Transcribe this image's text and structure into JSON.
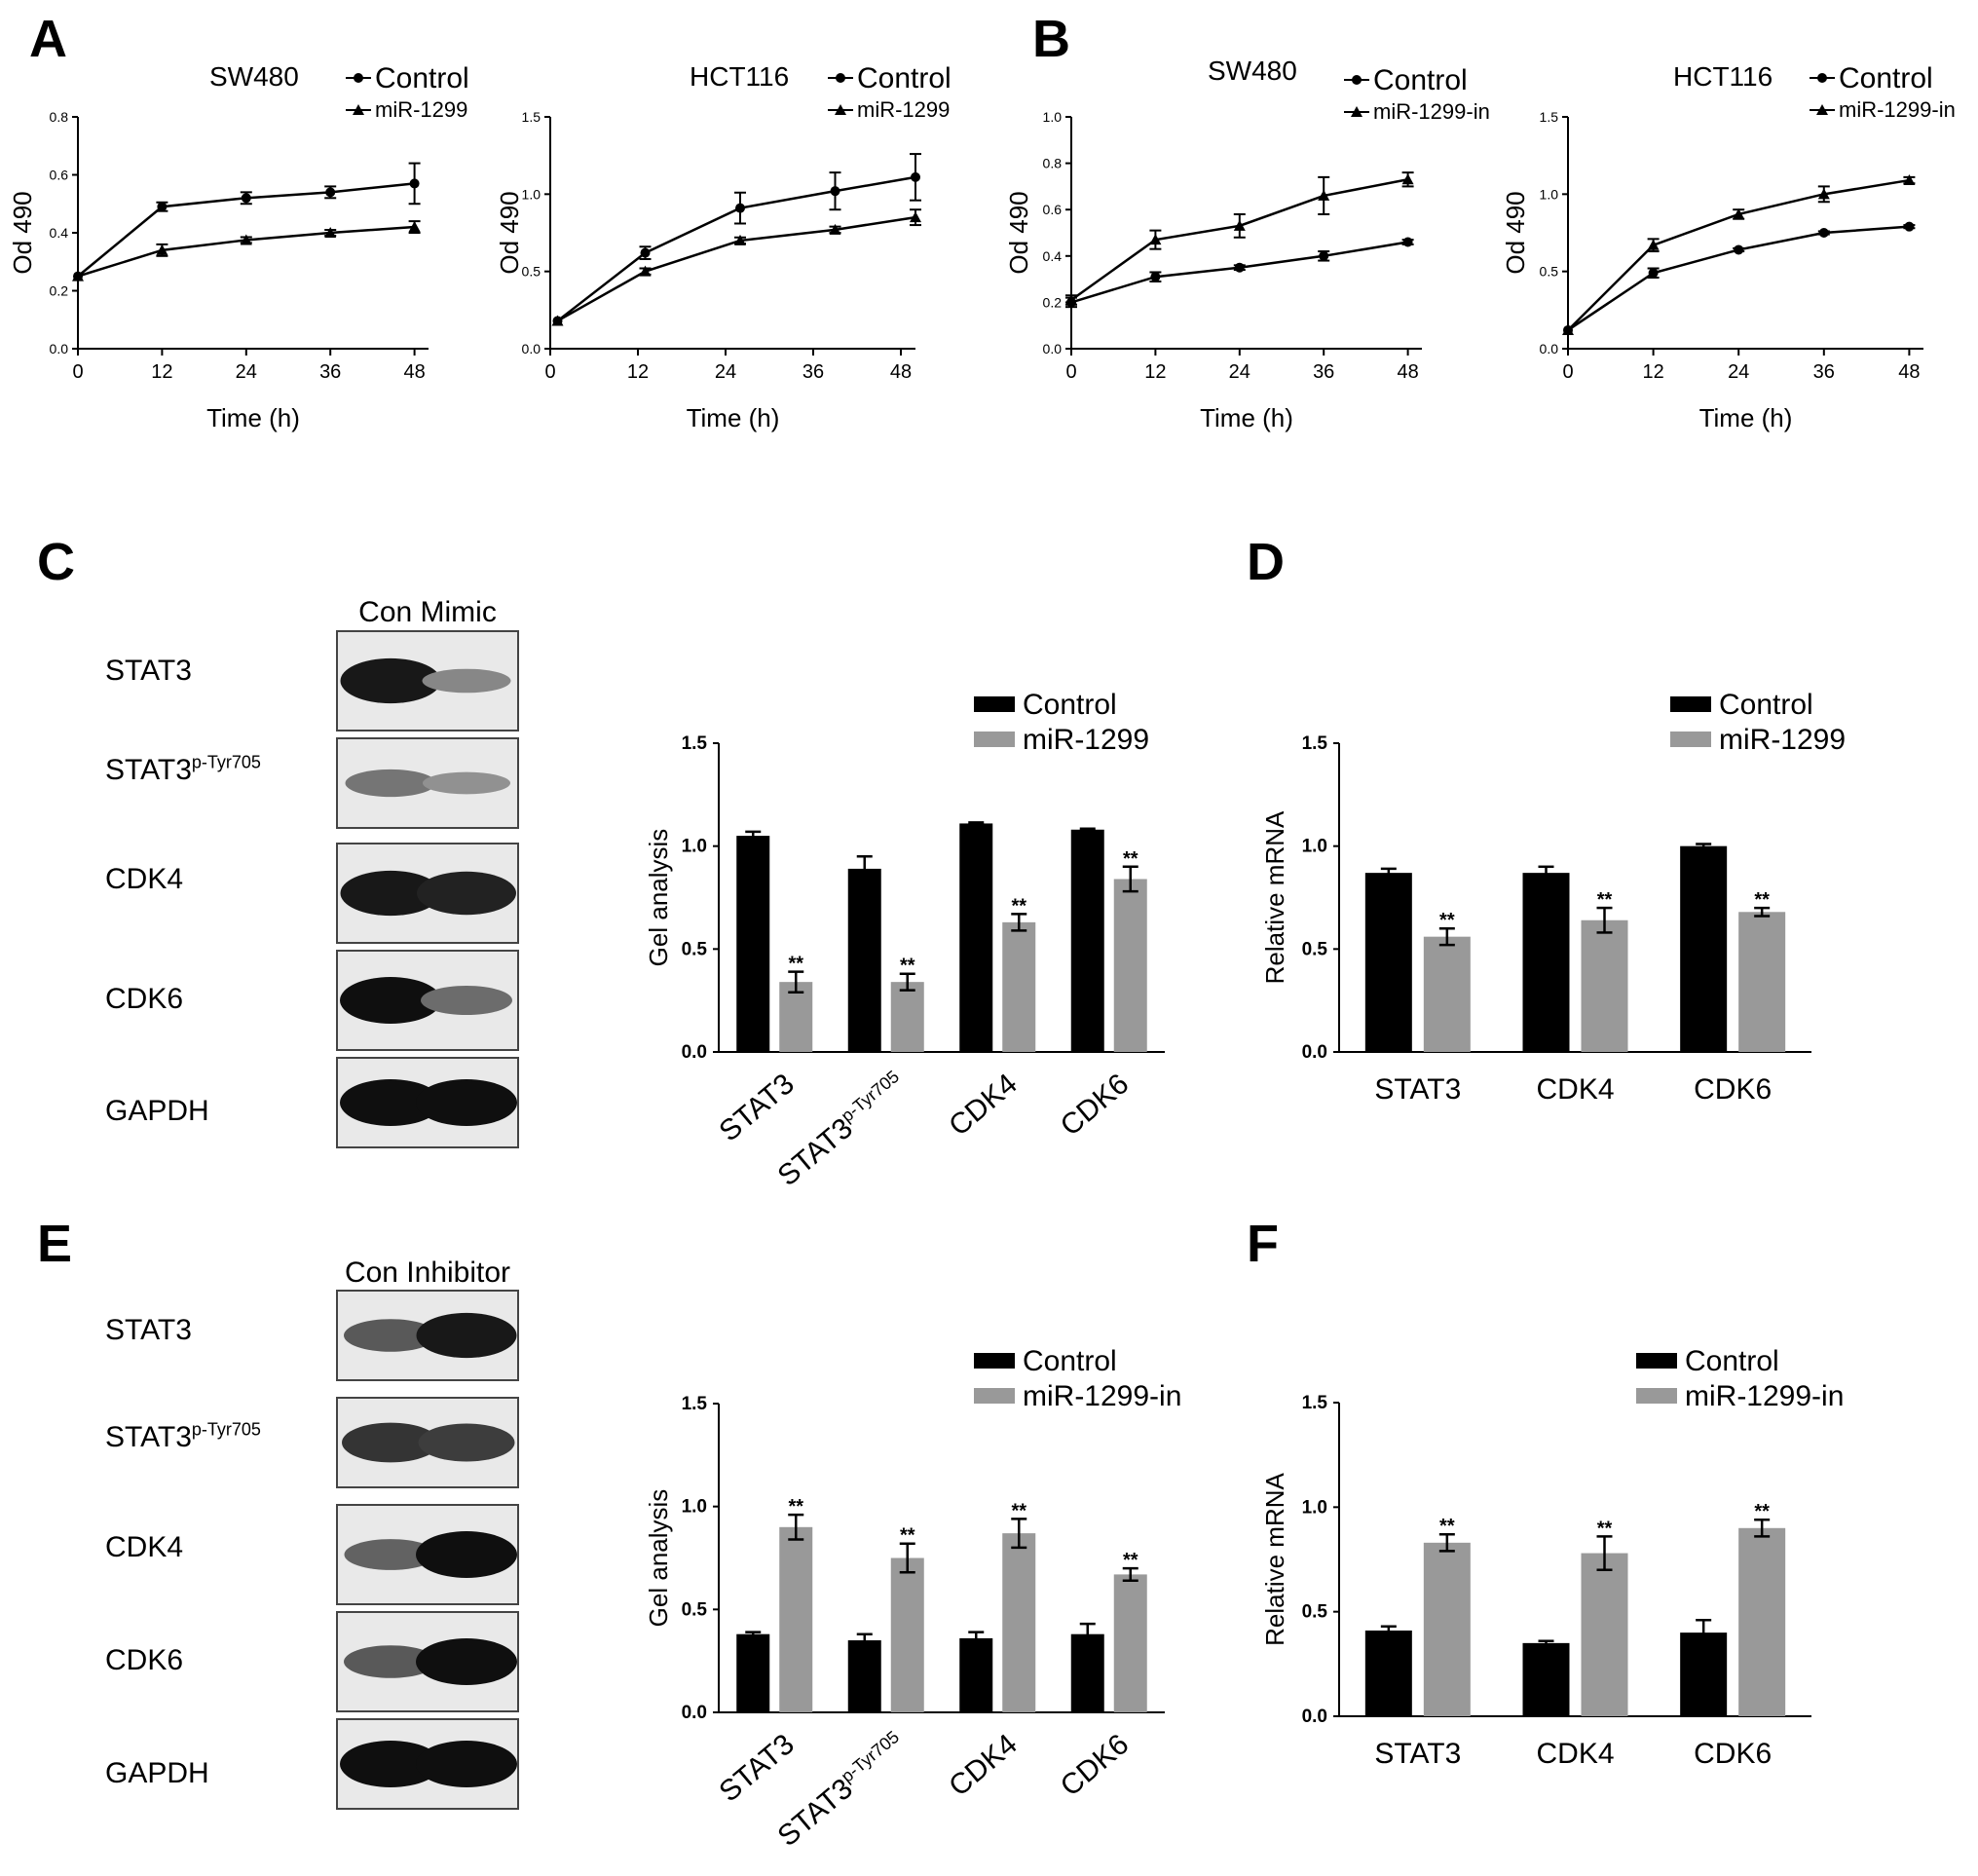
{
  "panels": {
    "A": "A",
    "B": "B",
    "C": "C",
    "D": "D",
    "E": "E",
    "F": "F"
  },
  "blots": {
    "C": {
      "header": "Con Mimic",
      "labels": [
        {
          "main": "STAT3",
          "sup": ""
        },
        {
          "main": "STAT3",
          "sup": "p-Tyr705"
        },
        {
          "main": "CDK4",
          "sup": ""
        },
        {
          "main": "CDK6",
          "sup": ""
        },
        {
          "main": "GAPDH",
          "sup": ""
        }
      ],
      "intensity": [
        [
          0.95,
          0.35
        ],
        [
          0.45,
          0.3
        ],
        [
          0.95,
          0.9
        ],
        [
          1.0,
          0.5
        ],
        [
          1.0,
          1.0
        ]
      ]
    },
    "E": {
      "header": "Con Inhibitor",
      "labels": [
        {
          "main": "STAT3",
          "sup": ""
        },
        {
          "main": "STAT3",
          "sup": "p-Tyr705"
        },
        {
          "main": "CDK4",
          "sup": ""
        },
        {
          "main": "CDK6",
          "sup": ""
        },
        {
          "main": "GAPDH",
          "sup": ""
        }
      ],
      "intensity": [
        [
          0.6,
          0.95
        ],
        [
          0.8,
          0.75
        ],
        [
          0.55,
          1.0
        ],
        [
          0.6,
          1.0
        ],
        [
          1.0,
          1.0
        ]
      ]
    }
  },
  "chart_data": [
    {
      "id": "A-SW480",
      "type": "line",
      "title": "SW480",
      "xlabel": "Time (h)",
      "ylabel": "Od 490",
      "xlim": [
        0,
        50
      ],
      "ylim": [
        0,
        0.8
      ],
      "xticks": [
        "0",
        "12",
        "24",
        "36",
        "48"
      ],
      "yticks": [
        "0.0",
        "0.2",
        "0.4",
        "0.6",
        "0.8"
      ],
      "series": [
        {
          "name": "Control",
          "marker": "circle",
          "x": [
            0,
            12,
            24,
            36,
            48
          ],
          "y": [
            0.25,
            0.49,
            0.52,
            0.54,
            0.57
          ],
          "err": [
            0,
            0.015,
            0.02,
            0.02,
            0.07
          ]
        },
        {
          "name": "miR-1299",
          "marker": "triangle",
          "x": [
            0,
            12,
            24,
            36,
            48
          ],
          "y": [
            0.25,
            0.34,
            0.375,
            0.4,
            0.42
          ],
          "err": [
            0,
            0.02,
            0.01,
            0.01,
            0.02
          ]
        }
      ]
    },
    {
      "id": "A-HCT116",
      "type": "line",
      "title": "HCT116",
      "xlabel": "Time (h)",
      "ylabel": "Od 490",
      "xlim": [
        0,
        50
      ],
      "ylim": [
        0,
        1.5
      ],
      "xticks": [
        "0",
        "12",
        "24",
        "36",
        "48"
      ],
      "yticks": [
        "0.0",
        "0.5",
        "1.0",
        "1.5"
      ],
      "series": [
        {
          "name": "Control",
          "marker": "circle",
          "x": [
            1,
            13,
            26,
            39,
            50
          ],
          "y": [
            0.18,
            0.62,
            0.91,
            1.02,
            1.11
          ],
          "err": [
            0,
            0.04,
            0.1,
            0.12,
            0.15
          ]
        },
        {
          "name": "miR-1299",
          "marker": "triangle",
          "x": [
            1,
            13,
            26,
            39,
            50
          ],
          "y": [
            0.18,
            0.5,
            0.7,
            0.77,
            0.85
          ],
          "err": [
            0,
            0.02,
            0.02,
            0.02,
            0.05
          ]
        }
      ]
    },
    {
      "id": "B-SW480",
      "type": "line",
      "title": "SW480",
      "xlabel": "Time (h)",
      "ylabel": "Od 490",
      "xlim": [
        0,
        50
      ],
      "ylim": [
        0,
        1.0
      ],
      "xticks": [
        "0",
        "12",
        "24",
        "36",
        "48"
      ],
      "yticks": [
        "0.0",
        "0.2",
        "0.4",
        "0.6",
        "0.8",
        "1.0"
      ],
      "series": [
        {
          "name": "Control",
          "marker": "circle",
          "x": [
            0,
            12,
            24,
            36,
            48
          ],
          "y": [
            0.2,
            0.31,
            0.35,
            0.4,
            0.46
          ],
          "err": [
            0.02,
            0.02,
            0.01,
            0.02,
            0.01
          ]
        },
        {
          "name": "miR-1299-in",
          "marker": "triangle",
          "x": [
            0,
            12,
            24,
            36,
            48
          ],
          "y": [
            0.21,
            0.47,
            0.53,
            0.66,
            0.73
          ],
          "err": [
            0.02,
            0.04,
            0.05,
            0.08,
            0.03
          ]
        }
      ]
    },
    {
      "id": "B-HCT116",
      "type": "line",
      "title": "HCT116",
      "xlabel": "Time (h)",
      "ylabel": "Od 490",
      "xlim": [
        0,
        50
      ],
      "ylim": [
        0,
        1.5
      ],
      "xticks": [
        "0",
        "12",
        "24",
        "36",
        "48"
      ],
      "yticks": [
        "0.0",
        "0.5",
        "1.0",
        "1.5"
      ],
      "series": [
        {
          "name": "Control",
          "marker": "circle",
          "x": [
            0,
            12,
            24,
            36,
            48
          ],
          "y": [
            0.12,
            0.49,
            0.64,
            0.75,
            0.79
          ],
          "err": [
            0,
            0.03,
            0.01,
            0.01,
            0.01
          ]
        },
        {
          "name": "miR-1299-in",
          "marker": "triangle",
          "x": [
            0,
            12,
            24,
            36,
            48
          ],
          "y": [
            0.12,
            0.67,
            0.87,
            1.0,
            1.09
          ],
          "err": [
            0,
            0.04,
            0.03,
            0.05,
            0.02
          ]
        }
      ]
    },
    {
      "id": "C-gel",
      "type": "bar",
      "ylabel": "Gel analysis",
      "ylim": [
        0,
        1.5
      ],
      "yticks": [
        "0.0",
        "0.5",
        "1.0",
        "1.5"
      ],
      "categories": [
        {
          "main": "STAT3",
          "sup": ""
        },
        {
          "main": "STAT3",
          "sup": "p-Tyr705"
        },
        {
          "main": "CDK4",
          "sup": ""
        },
        {
          "main": "CDK6",
          "sup": ""
        }
      ],
      "series": [
        {
          "name": "Control",
          "color": "#000000",
          "values": [
            1.05,
            0.89,
            1.11,
            1.08
          ],
          "err": [
            0.02,
            0.06,
            0.005,
            0.005
          ]
        },
        {
          "name": "miR-1299",
          "color": "#999999",
          "values": [
            0.34,
            0.34,
            0.63,
            0.84
          ],
          "err": [
            0.05,
            0.04,
            0.04,
            0.06
          ]
        }
      ],
      "annotations": [
        "",
        "**",
        "",
        "**",
        "",
        "**",
        "",
        "**"
      ]
    },
    {
      "id": "D-mrna",
      "type": "bar",
      "ylabel": "Relative mRNA",
      "ylim": [
        0,
        1.5
      ],
      "yticks": [
        "0.0",
        "0.5",
        "1.0",
        "1.5"
      ],
      "categories": [
        {
          "main": "STAT3",
          "sup": ""
        },
        {
          "main": "CDK4",
          "sup": ""
        },
        {
          "main": "CDK6",
          "sup": ""
        }
      ],
      "series": [
        {
          "name": "Control",
          "color": "#000000",
          "values": [
            0.87,
            0.87,
            1.0
          ],
          "err": [
            0.02,
            0.03,
            0.01
          ]
        },
        {
          "name": "miR-1299",
          "color": "#999999",
          "values": [
            0.56,
            0.64,
            0.68
          ],
          "err": [
            0.04,
            0.06,
            0.02
          ]
        }
      ],
      "annotations": [
        "",
        "**",
        "",
        "**",
        "",
        "**"
      ]
    },
    {
      "id": "E-gel",
      "type": "bar",
      "ylabel": "Gel analysis",
      "ylim": [
        0,
        1.5
      ],
      "yticks": [
        "0.0",
        "0.5",
        "1.0",
        "1.5"
      ],
      "categories": [
        {
          "main": "STAT3",
          "sup": ""
        },
        {
          "main": "STAT3",
          "sup": "p-Tyr705"
        },
        {
          "main": "CDK4",
          "sup": ""
        },
        {
          "main": "CDK6",
          "sup": ""
        }
      ],
      "series": [
        {
          "name": "Control",
          "color": "#000000",
          "values": [
            0.38,
            0.35,
            0.36,
            0.38
          ],
          "err": [
            0.01,
            0.03,
            0.03,
            0.05
          ]
        },
        {
          "name": "miR-1299-in",
          "color": "#999999",
          "values": [
            0.9,
            0.75,
            0.87,
            0.67
          ],
          "err": [
            0.06,
            0.07,
            0.07,
            0.03
          ]
        }
      ],
      "annotations": [
        "",
        "**",
        "",
        "**",
        "",
        "**",
        "",
        "**"
      ]
    },
    {
      "id": "F-mrna",
      "type": "bar",
      "ylabel": "Relative mRNA",
      "ylim": [
        0,
        1.5
      ],
      "yticks": [
        "0.0",
        "0.5",
        "1.0",
        "1.5"
      ],
      "categories": [
        {
          "main": "STAT3",
          "sup": ""
        },
        {
          "main": "CDK4",
          "sup": ""
        },
        {
          "main": "CDK6",
          "sup": ""
        }
      ],
      "series": [
        {
          "name": "Control",
          "color": "#000000",
          "values": [
            0.41,
            0.35,
            0.4
          ],
          "err": [
            0.02,
            0.01,
            0.06
          ]
        },
        {
          "name": "miR-1299-in",
          "color": "#999999",
          "values": [
            0.83,
            0.78,
            0.9
          ],
          "err": [
            0.04,
            0.08,
            0.04
          ]
        }
      ],
      "annotations": [
        "",
        "**",
        "",
        "**",
        "",
        "**"
      ]
    }
  ]
}
